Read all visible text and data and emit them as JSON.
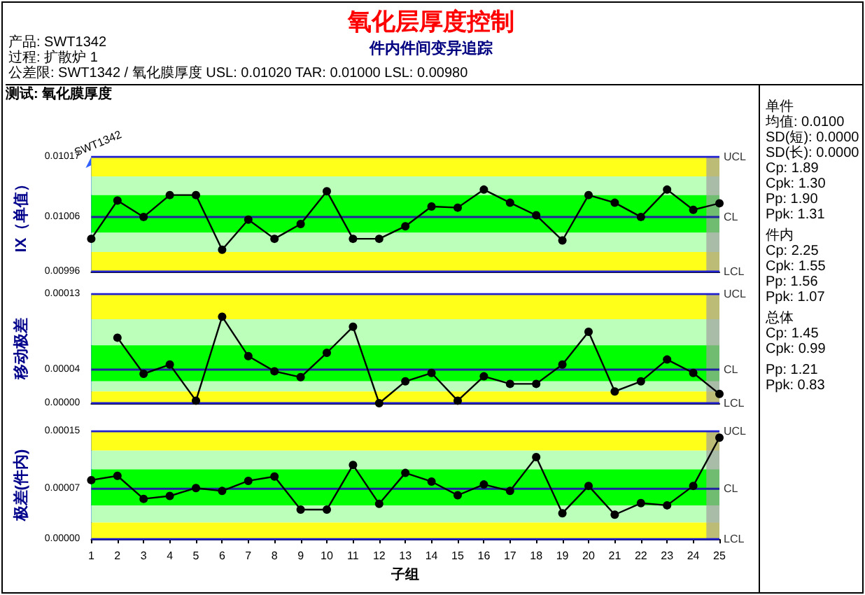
{
  "chart_data": [
    {
      "type": "other",
      "title": "氧化层厚度控制",
      "subtitle": "件内件间变异追踪",
      "annotations": [
        "产品: SWT1342",
        "过程: 扩散炉 1",
        "公差限: SWT1342 / 氧化膜厚度 USL: 0.01020 TAR: 0.01000 LSL: 0.00980",
        "测试: 氧化膜厚度"
      ]
    },
    {
      "type": "line",
      "ylabel": "IX（单值）",
      "x": [
        1,
        2,
        3,
        4,
        5,
        6,
        7,
        8,
        9,
        10,
        11,
        12,
        13,
        14,
        15,
        16,
        17,
        18,
        19,
        20,
        21,
        22,
        23,
        24,
        25
      ],
      "series": [
        {
          "color": "#000000",
          "values": [
            0.01002,
            0.01009,
            0.01006,
            0.0101,
            0.0101,
            0.01,
            0.010055,
            0.01002,
            0.010047,
            0.010107,
            0.01002,
            0.01002,
            0.010043,
            0.010079,
            0.010077,
            0.01011,
            0.010086,
            0.010063,
            0.010017,
            0.0101,
            0.010086,
            0.01006,
            0.01011,
            0.010073,
            0.010085
          ]
        }
      ],
      "xlim": [
        1,
        25
      ],
      "ylim": [
        0.00996,
        0.01017
      ],
      "yticks": [
        0.00996,
        0.01006,
        0.01017
      ],
      "tick_labels": "y",
      "grid": false,
      "marker": "circle",
      "line_style": "solid",
      "annotations": [
        "SWT1342"
      ],
      "ref_lines": [
        {
          "axis": "y",
          "value": 0.01017,
          "label": "UCL",
          "color": "#2020d0"
        },
        {
          "axis": "y",
          "value": 0.01006,
          "label": "CL",
          "color": "#2020a0"
        },
        {
          "axis": "y",
          "value": 0.00996,
          "label": "LCL",
          "color": "#2020d0"
        }
      ],
      "bands": [
        {
          "axis": "y",
          "from": 0.010134,
          "to": 0.01017,
          "color": "#ffff1a"
        },
        {
          "axis": "y",
          "from": 0.0101,
          "to": 0.010134,
          "color": "#bbffbb"
        },
        {
          "axis": "y",
          "from": 0.010031,
          "to": 0.0101,
          "color": "#00ff00"
        },
        {
          "axis": "y",
          "from": 0.009996,
          "to": 0.010031,
          "color": "#bbffbb"
        },
        {
          "axis": "y",
          "from": 0.00996,
          "to": 0.009996,
          "color": "#ffff1a"
        },
        {
          "axis": "x",
          "from": 24.5,
          "to": 25,
          "color": "#a0a0a0"
        }
      ]
    },
    {
      "type": "line",
      "ylabel": "移动极差",
      "x": [
        2,
        3,
        4,
        5,
        6,
        7,
        8,
        9,
        10,
        11,
        12,
        13,
        14,
        15,
        16,
        17,
        18,
        19,
        20,
        21,
        22,
        23,
        24,
        25
      ],
      "series": [
        {
          "color": "#000000",
          "values": [
            7.8e-05,
            3.5e-05,
            4.6e-05,
            3e-06,
            0.000103,
            5.6e-05,
            3.8e-05,
            3.1e-05,
            6e-05,
            9.1e-05,
            0,
            2.6e-05,
            3.6e-05,
            3e-06,
            3.2e-05,
            2.3e-05,
            2.3e-05,
            4.6e-05,
            8.5e-05,
            1.4e-05,
            2.6e-05,
            5.2e-05,
            3.6e-05,
            1.1e-05
          ]
        }
      ],
      "xlim": [
        1,
        25
      ],
      "ylim": [
        0,
        0.00013
      ],
      "yticks": [
        {
          "value": 0,
          "label": "0.00000"
        },
        {
          "value": 4e-05,
          "label": "0.00004"
        },
        0.00013
      ],
      "tick_labels": "y",
      "grid": false,
      "marker": "circle",
      "line_style": "solid",
      "ref_lines": [
        {
          "axis": "y",
          "value": 0.00013,
          "label": "UCL",
          "color": "#2020d0"
        },
        {
          "axis": "y",
          "value": 4e-05,
          "label": "CL",
          "color": "#2020a0"
        },
        {
          "axis": "y",
          "value": 0,
          "label": "LCL",
          "color": "#2020d0"
        }
      ],
      "bands": [
        {
          "axis": "y",
          "from": 0.0001,
          "to": 0.00013,
          "color": "#ffff1a"
        },
        {
          "axis": "y",
          "from": 6.9e-05,
          "to": 0.0001,
          "color": "#bbffbb"
        },
        {
          "axis": "y",
          "from": 2.6e-05,
          "to": 6.9e-05,
          "color": "#00ff00"
        },
        {
          "axis": "y",
          "from": 1.4e-05,
          "to": 2.6e-05,
          "color": "#bbffbb"
        },
        {
          "axis": "y",
          "from": 0,
          "to": 1.4e-05,
          "color": "#ffff1a"
        },
        {
          "axis": "x",
          "from": 24.5,
          "to": 25,
          "color": "#a0a0a0"
        }
      ]
    },
    {
      "type": "line",
      "ylabel": "极差(件内)",
      "xlabel": "子组",
      "x": [
        1,
        2,
        3,
        4,
        5,
        6,
        7,
        8,
        9,
        10,
        11,
        12,
        13,
        14,
        15,
        16,
        17,
        18,
        19,
        20,
        21,
        22,
        23,
        24,
        25
      ],
      "series": [
        {
          "color": "#000000",
          "values": [
            8.2e-05,
            8.8e-05,
            5.6e-05,
            6e-05,
            7.1e-05,
            6.7e-05,
            8.1e-05,
            8.7e-05,
            4.1e-05,
            4.1e-05,
            0.000103,
            4.9e-05,
            9.2e-05,
            8e-05,
            6.1e-05,
            7.6e-05,
            6.7e-05,
            0.000114,
            3.6e-05,
            7.4e-05,
            3.4e-05,
            5e-05,
            4.7e-05,
            7.4e-05,
            0.000141
          ]
        }
      ],
      "xlim": [
        1,
        25
      ],
      "xticks": [
        1,
        2,
        3,
        4,
        5,
        6,
        7,
        8,
        9,
        10,
        11,
        12,
        13,
        14,
        15,
        16,
        17,
        18,
        19,
        20,
        21,
        22,
        23,
        24,
        25
      ],
      "ylim": [
        0,
        0.00015
      ],
      "yticks": [
        {
          "value": 0,
          "label": "0.00000"
        },
        {
          "value": 7e-05,
          "label": "0.00007"
        },
        0.00015
      ],
      "grid": false,
      "marker": "circle",
      "line_style": "solid",
      "ref_lines": [
        {
          "axis": "y",
          "value": 0.00015,
          "label": "UCL",
          "color": "#2020d0"
        },
        {
          "axis": "y",
          "value": 7e-05,
          "label": "CL",
          "color": "#2020a0"
        },
        {
          "axis": "y",
          "value": 0,
          "label": "LCL",
          "color": "#2020d0"
        }
      ],
      "bands": [
        {
          "axis": "y",
          "from": 0.000123,
          "to": 0.00015,
          "color": "#ffff1a"
        },
        {
          "axis": "y",
          "from": 9.7e-05,
          "to": 0.000123,
          "color": "#bbffbb"
        },
        {
          "axis": "y",
          "from": 4.7e-05,
          "to": 9.7e-05,
          "color": "#00ff00"
        },
        {
          "axis": "y",
          "from": 2.3e-05,
          "to": 4.7e-05,
          "color": "#bbffbb"
        },
        {
          "axis": "y",
          "from": 0,
          "to": 2.3e-05,
          "color": "#ffff1a"
        },
        {
          "axis": "x",
          "from": 24.5,
          "to": 25,
          "color": "#a0a0a0"
        }
      ]
    },
    {
      "type": "other",
      "annotations": [
        "单件",
        "均值: 0.0100",
        "SD(短): 0.0000",
        "SD(长): 0.0000",
        "Cp: 1.89",
        "Cpk: 1.30",
        "Pp: 1.90",
        "Ppk: 1.31",
        "件内",
        "Cp: 2.25",
        "Cpk: 1.55",
        "Pp: 1.56",
        "Ppk: 1.07",
        "总体",
        "Cp: 1.45",
        "Cpk: 0.99",
        "Pp: 1.21",
        "Ppk: 0.83"
      ]
    }
  ]
}
